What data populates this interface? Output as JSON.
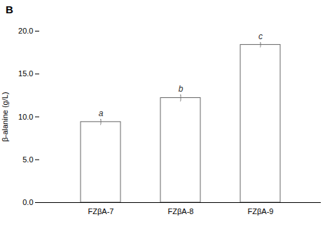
{
  "chart_data": {
    "type": "bar",
    "panel_label": "B",
    "categories": [
      "FZβA-7",
      "FZβA-8",
      "FZβA-9"
    ],
    "values": [
      9.4,
      12.2,
      18.4
    ],
    "error_bars": [
      0.3,
      0.35,
      0.25
    ],
    "letters": [
      "a",
      "b",
      "c"
    ],
    "color": "#ffffff",
    "ylabel": "β-alanine (g/L)",
    "ylim": [
      0,
      20.0
    ],
    "yticks": [
      {
        "value": 0.0,
        "label": "0.0"
      },
      {
        "value": 5.0,
        "label": "5.0"
      },
      {
        "value": 10.0,
        "label": "10.0"
      },
      {
        "value": 15.0,
        "label": "15.0"
      },
      {
        "value": 20.0,
        "label": "20.0"
      }
    ]
  }
}
